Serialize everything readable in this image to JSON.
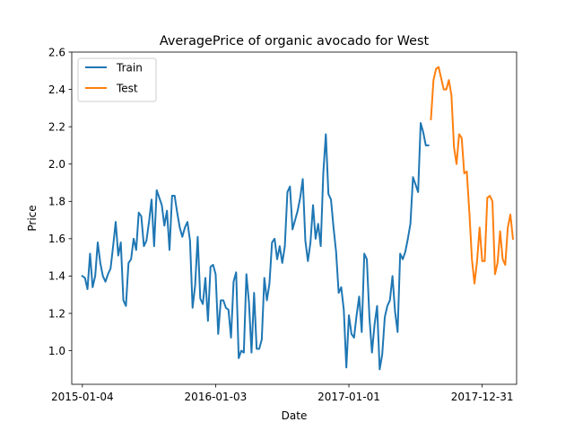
{
  "chart_data": {
    "type": "line",
    "title": "AveragePrice of organic avocado for West",
    "xlabel": "Date",
    "ylabel": "Price",
    "ylim": [
      0.82,
      2.6
    ],
    "xlim": [
      "2014-12-06",
      "2018-04-04"
    ],
    "xticks": [
      {
        "date": "2015-01-04",
        "label": "2015-01-04"
      },
      {
        "date": "2016-01-03",
        "label": "2016-01-03"
      },
      {
        "date": "2017-01-01",
        "label": "2017-01-01"
      },
      {
        "date": "2017-12-31",
        "label": "2017-12-31"
      }
    ],
    "yticks": [
      1.0,
      1.2,
      1.4,
      1.6,
      1.8,
      2.0,
      2.2,
      2.4,
      2.6
    ],
    "ytick_labels": [
      "1.0",
      "1.2",
      "1.4",
      "1.6",
      "1.8",
      "2.0",
      "2.2",
      "2.4",
      "2.6"
    ],
    "grid": false,
    "legend_position": "top-left",
    "series": [
      {
        "name": "Train",
        "color": "#1f77b4",
        "points": [
          [
            "2015-01-04",
            1.4
          ],
          [
            "2015-01-11",
            1.39
          ],
          [
            "2015-01-18",
            1.33
          ],
          [
            "2015-01-25",
            1.52
          ],
          [
            "2015-02-01",
            1.34
          ],
          [
            "2015-02-08",
            1.4
          ],
          [
            "2015-02-15",
            1.58
          ],
          [
            "2015-02-22",
            1.47
          ],
          [
            "2015-03-01",
            1.4
          ],
          [
            "2015-03-08",
            1.37
          ],
          [
            "2015-03-15",
            1.41
          ],
          [
            "2015-03-22",
            1.44
          ],
          [
            "2015-03-29",
            1.56
          ],
          [
            "2015-04-05",
            1.69
          ],
          [
            "2015-04-12",
            1.51
          ],
          [
            "2015-04-19",
            1.58
          ],
          [
            "2015-04-26",
            1.27
          ],
          [
            "2015-05-03",
            1.24
          ],
          [
            "2015-05-10",
            1.47
          ],
          [
            "2015-05-17",
            1.49
          ],
          [
            "2015-05-24",
            1.6
          ],
          [
            "2015-05-31",
            1.54
          ],
          [
            "2015-06-07",
            1.74
          ],
          [
            "2015-06-14",
            1.72
          ],
          [
            "2015-06-21",
            1.56
          ],
          [
            "2015-06-28",
            1.59
          ],
          [
            "2015-07-05",
            1.69
          ],
          [
            "2015-07-12",
            1.81
          ],
          [
            "2015-07-19",
            1.56
          ],
          [
            "2015-07-26",
            1.86
          ],
          [
            "2015-08-02",
            1.82
          ],
          [
            "2015-08-09",
            1.78
          ],
          [
            "2015-08-16",
            1.67
          ],
          [
            "2015-08-23",
            1.75
          ],
          [
            "2015-08-30",
            1.54
          ],
          [
            "2015-09-06",
            1.83
          ],
          [
            "2015-09-13",
            1.83
          ],
          [
            "2015-09-20",
            1.74
          ],
          [
            "2015-09-27",
            1.66
          ],
          [
            "2015-10-04",
            1.61
          ],
          [
            "2015-10-11",
            1.66
          ],
          [
            "2015-10-18",
            1.69
          ],
          [
            "2015-10-25",
            1.59
          ],
          [
            "2015-11-01",
            1.23
          ],
          [
            "2015-11-08",
            1.35
          ],
          [
            "2015-11-15",
            1.61
          ],
          [
            "2015-11-22",
            1.28
          ],
          [
            "2015-11-29",
            1.25
          ],
          [
            "2015-12-06",
            1.39
          ],
          [
            "2015-12-13",
            1.16
          ],
          [
            "2015-12-20",
            1.45
          ],
          [
            "2015-12-27",
            1.46
          ],
          [
            "2016-01-03",
            1.41
          ],
          [
            "2016-01-10",
            1.09
          ],
          [
            "2016-01-17",
            1.27
          ],
          [
            "2016-01-24",
            1.27
          ],
          [
            "2016-01-31",
            1.23
          ],
          [
            "2016-02-07",
            1.22
          ],
          [
            "2016-02-14",
            1.07
          ],
          [
            "2016-02-21",
            1.37
          ],
          [
            "2016-02-28",
            1.42
          ],
          [
            "2016-03-06",
            0.96
          ],
          [
            "2016-03-13",
            1.0
          ],
          [
            "2016-03-20",
            0.99
          ],
          [
            "2016-03-27",
            1.41
          ],
          [
            "2016-04-03",
            1.26
          ],
          [
            "2016-04-10",
            0.99
          ],
          [
            "2016-04-17",
            1.31
          ],
          [
            "2016-04-24",
            1.01
          ],
          [
            "2016-05-01",
            1.01
          ],
          [
            "2016-05-08",
            1.06
          ],
          [
            "2016-05-15",
            1.39
          ],
          [
            "2016-05-22",
            1.27
          ],
          [
            "2016-05-29",
            1.36
          ],
          [
            "2016-06-05",
            1.58
          ],
          [
            "2016-06-12",
            1.6
          ],
          [
            "2016-06-19",
            1.49
          ],
          [
            "2016-06-26",
            1.56
          ],
          [
            "2016-07-03",
            1.47
          ],
          [
            "2016-07-10",
            1.56
          ],
          [
            "2016-07-17",
            1.85
          ],
          [
            "2016-07-24",
            1.88
          ],
          [
            "2016-07-31",
            1.65
          ],
          [
            "2016-08-07",
            1.7
          ],
          [
            "2016-08-14",
            1.75
          ],
          [
            "2016-08-21",
            1.82
          ],
          [
            "2016-08-28",
            1.92
          ],
          [
            "2016-09-04",
            1.59
          ],
          [
            "2016-09-11",
            1.48
          ],
          [
            "2016-09-18",
            1.58
          ],
          [
            "2016-09-25",
            1.78
          ],
          [
            "2016-10-02",
            1.6
          ],
          [
            "2016-10-09",
            1.68
          ],
          [
            "2016-10-16",
            1.56
          ],
          [
            "2016-10-23",
            1.95
          ],
          [
            "2016-10-30",
            2.16
          ],
          [
            "2016-11-06",
            1.84
          ],
          [
            "2016-11-13",
            1.81
          ],
          [
            "2016-11-20",
            1.66
          ],
          [
            "2016-11-27",
            1.53
          ],
          [
            "2016-12-04",
            1.31
          ],
          [
            "2016-12-11",
            1.34
          ],
          [
            "2016-12-18",
            1.22
          ],
          [
            "2016-12-25",
            0.91
          ],
          [
            "2017-01-01",
            1.19
          ],
          [
            "2017-01-08",
            1.09
          ],
          [
            "2017-01-15",
            1.07
          ],
          [
            "2017-01-22",
            1.19
          ],
          [
            "2017-01-29",
            1.29
          ],
          [
            "2017-02-05",
            1.1
          ],
          [
            "2017-02-12",
            1.52
          ],
          [
            "2017-02-19",
            1.49
          ],
          [
            "2017-02-26",
            1.18
          ],
          [
            "2017-03-05",
            0.99
          ],
          [
            "2017-03-12",
            1.14
          ],
          [
            "2017-03-19",
            1.24
          ],
          [
            "2017-03-26",
            0.9
          ],
          [
            "2017-04-02",
            0.98
          ],
          [
            "2017-04-09",
            1.18
          ],
          [
            "2017-04-16",
            1.24
          ],
          [
            "2017-04-23",
            1.27
          ],
          [
            "2017-04-30",
            1.4
          ],
          [
            "2017-05-07",
            1.21
          ],
          [
            "2017-05-14",
            1.1
          ],
          [
            "2017-05-21",
            1.52
          ],
          [
            "2017-05-28",
            1.49
          ],
          [
            "2017-06-04",
            1.53
          ],
          [
            "2017-06-11",
            1.6
          ],
          [
            "2017-06-18",
            1.68
          ],
          [
            "2017-06-25",
            1.93
          ],
          [
            "2017-07-02",
            1.89
          ],
          [
            "2017-07-09",
            1.85
          ],
          [
            "2017-07-16",
            2.22
          ],
          [
            "2017-07-23",
            2.17
          ],
          [
            "2017-07-30",
            2.1
          ],
          [
            "2017-08-06",
            2.1
          ]
        ]
      },
      {
        "name": "Test",
        "color": "#ff7f0e",
        "points": [
          [
            "2017-08-13",
            2.24
          ],
          [
            "2017-08-20",
            2.45
          ],
          [
            "2017-08-27",
            2.51
          ],
          [
            "2017-09-03",
            2.52
          ],
          [
            "2017-09-10",
            2.46
          ],
          [
            "2017-09-17",
            2.4
          ],
          [
            "2017-09-24",
            2.4
          ],
          [
            "2017-10-01",
            2.45
          ],
          [
            "2017-10-08",
            2.37
          ],
          [
            "2017-10-15",
            2.09
          ],
          [
            "2017-10-22",
            2.0
          ],
          [
            "2017-10-29",
            2.16
          ],
          [
            "2017-11-05",
            2.14
          ],
          [
            "2017-11-12",
            1.95
          ],
          [
            "2017-11-19",
            1.96
          ],
          [
            "2017-11-26",
            1.74
          ],
          [
            "2017-12-03",
            1.49
          ],
          [
            "2017-12-10",
            1.36
          ],
          [
            "2017-12-17",
            1.48
          ],
          [
            "2017-12-24",
            1.66
          ],
          [
            "2017-12-31",
            1.48
          ],
          [
            "2018-01-07",
            1.48
          ],
          [
            "2018-01-14",
            1.82
          ],
          [
            "2018-01-21",
            1.83
          ],
          [
            "2018-01-28",
            1.8
          ],
          [
            "2018-02-04",
            1.41
          ],
          [
            "2018-02-11",
            1.47
          ],
          [
            "2018-02-18",
            1.64
          ],
          [
            "2018-02-25",
            1.49
          ],
          [
            "2018-03-04",
            1.46
          ],
          [
            "2018-03-11",
            1.66
          ],
          [
            "2018-03-18",
            1.73
          ],
          [
            "2018-03-25",
            1.6
          ]
        ]
      }
    ]
  }
}
